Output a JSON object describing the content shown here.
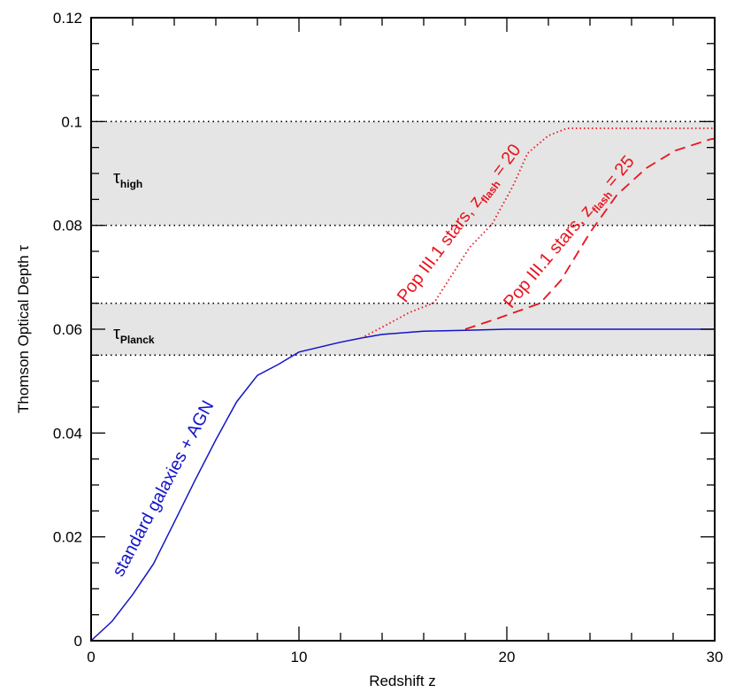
{
  "chart_data": {
    "type": "line",
    "xlabel": "Redshift z",
    "ylabel": "Thomson Optical Depth τ",
    "xlim": [
      0,
      30
    ],
    "ylim": [
      0,
      0.12
    ],
    "x_ticks": [
      "0",
      "10",
      "20",
      "30"
    ],
    "y_ticks": [
      "0",
      "0.02",
      "0.04",
      "0.06",
      "0.08",
      "0.1",
      "0.12"
    ],
    "x_minor_step": 2,
    "y_minor_step": 0.005,
    "grid": false,
    "bands": [
      {
        "range": [
          0.08,
          0.1
        ],
        "label_symbol": "τ",
        "label_sub": "high",
        "color": "#e5e5e5"
      },
      {
        "range": [
          0.055,
          0.065
        ],
        "label_symbol": "τ",
        "label_sub": "Planck",
        "color": "#e5e5e5"
      }
    ],
    "series": [
      {
        "style": "solid",
        "color": "#1414c8",
        "x": [
          0,
          1,
          2,
          3,
          4,
          5,
          6,
          7,
          8,
          9,
          10,
          12,
          13,
          14,
          16,
          18,
          20,
          25,
          30
        ],
        "y": [
          0,
          0.0037,
          0.0089,
          0.0148,
          0.0228,
          0.0309,
          0.0387,
          0.046,
          0.0511,
          0.0532,
          0.0556,
          0.0575,
          0.0583,
          0.059,
          0.0596,
          0.0598,
          0.06,
          0.06,
          0.06
        ]
      },
      {
        "style": "dotted",
        "color": "#e8141e",
        "x": [
          13,
          14.2,
          15.3,
          16.5,
          18.2,
          19.3,
          20.3,
          21,
          22,
          22.9,
          30
        ],
        "y": [
          0.0583,
          0.0608,
          0.0632,
          0.0651,
          0.0757,
          0.0803,
          0.0876,
          0.0939,
          0.0973,
          0.0987,
          0.0987
        ]
      },
      {
        "style": "dashed",
        "color": "#e8141e",
        "x": [
          18,
          19.5,
          21.6,
          22.6,
          24,
          25.3,
          26.7,
          28.1,
          29.8,
          30
        ],
        "y": [
          0.06,
          0.062,
          0.065,
          0.0694,
          0.0786,
          0.0859,
          0.091,
          0.0944,
          0.0966,
          0.0967
        ]
      }
    ],
    "annotations": {
      "galaxies": "standard galaxies + AGN",
      "pop20": {
        "prefix": "Pop III.1 stars, z",
        "sub": "flash",
        "suffix": " = 20"
      },
      "pop25": {
        "prefix": "Pop III.1 stars, z",
        "sub": "flash",
        "suffix": " = 25"
      }
    }
  }
}
